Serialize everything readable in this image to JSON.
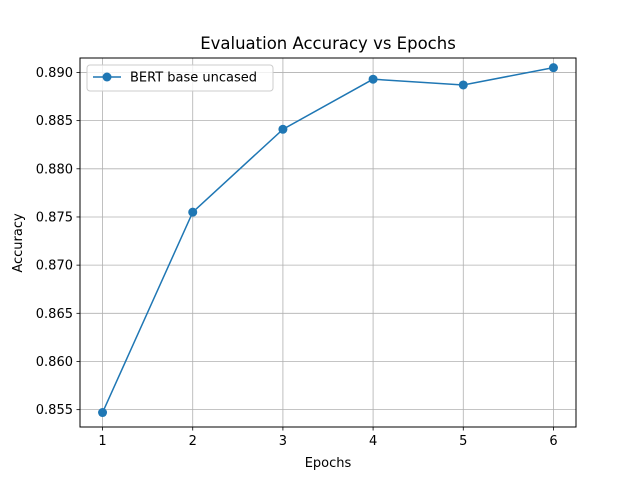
{
  "chart_data": {
    "type": "line",
    "title": "Evaluation Accuracy vs Epochs",
    "xlabel": "Epochs",
    "ylabel": "Accuracy",
    "x": [
      1,
      2,
      3,
      4,
      5,
      6
    ],
    "xticks": [
      "1",
      "2",
      "3",
      "4",
      "5",
      "6"
    ],
    "yticks": [
      "0.855",
      "0.860",
      "0.865",
      "0.870",
      "0.875",
      "0.880",
      "0.885",
      "0.890"
    ],
    "xlim": [
      0.75,
      6.25
    ],
    "ylim": [
      0.8532,
      0.8915
    ],
    "grid": true,
    "legend_position": "upper-left",
    "series": [
      {
        "name": "BERT base uncased",
        "color": "#1f77b4",
        "marker": "circle",
        "values": [
          0.8547,
          0.8755,
          0.8841,
          0.8893,
          0.8887,
          0.8905
        ]
      }
    ]
  }
}
